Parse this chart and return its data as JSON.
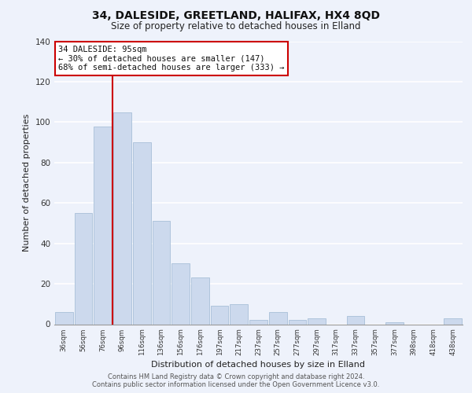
{
  "title": "34, DALESIDE, GREETLAND, HALIFAX, HX4 8QD",
  "subtitle": "Size of property relative to detached houses in Elland",
  "xlabel": "Distribution of detached houses by size in Elland",
  "ylabel": "Number of detached properties",
  "categories": [
    "36sqm",
    "56sqm",
    "76sqm",
    "96sqm",
    "116sqm",
    "136sqm",
    "156sqm",
    "176sqm",
    "197sqm",
    "217sqm",
    "237sqm",
    "257sqm",
    "277sqm",
    "297sqm",
    "317sqm",
    "337sqm",
    "357sqm",
    "377sqm",
    "398sqm",
    "418sqm",
    "438sqm"
  ],
  "values": [
    6,
    55,
    98,
    105,
    90,
    51,
    30,
    23,
    9,
    10,
    2,
    6,
    2,
    3,
    0,
    4,
    0,
    1,
    0,
    0,
    3
  ],
  "bar_color": "#ccd9ed",
  "bar_edge_color": "#a8bfd8",
  "vline_x_index": 3,
  "vline_color": "#cc0000",
  "annotation_text": "34 DALESIDE: 95sqm\n← 30% of detached houses are smaller (147)\n68% of semi-detached houses are larger (333) →",
  "annotation_box_color": "#ffffff",
  "annotation_box_edge": "#cc0000",
  "ylim": [
    0,
    140
  ],
  "yticks": [
    0,
    20,
    40,
    60,
    80,
    100,
    120,
    140
  ],
  "background_color": "#eef2fb",
  "grid_color": "#ffffff",
  "footer_line1": "Contains HM Land Registry data © Crown copyright and database right 2024.",
  "footer_line2": "Contains public sector information licensed under the Open Government Licence v3.0."
}
